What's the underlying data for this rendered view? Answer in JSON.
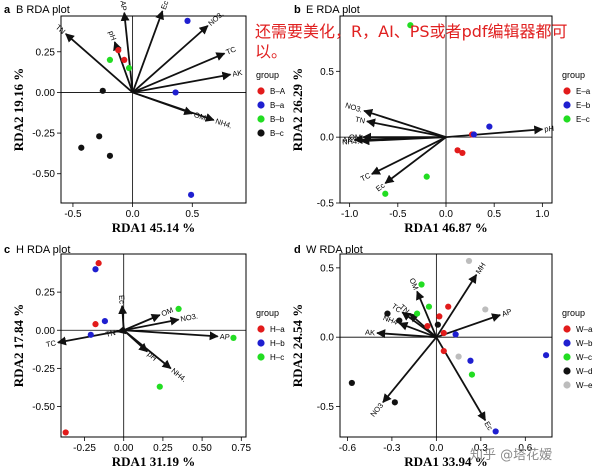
{
  "overlay_note": "还需要美化，R，AI、PS或者pdf编辑器都可以。",
  "watermark": "知乎 @塔花嫒",
  "colors": {
    "arrow": "#111111",
    "a": "#e21b1b",
    "b": "#1f1fd0",
    "c": "#22dd22",
    "d": "#111111",
    "e": "#bdbdbd"
  },
  "chart_data": [
    {
      "type": "scatter",
      "panel_letter": "a",
      "title": "B RDA plot",
      "xlabel": "RDA1 45.14  %",
      "ylabel": "RDA2 19.16  %",
      "xlim": [
        -0.6,
        0.95
      ],
      "ylim": [
        -0.68,
        0.47
      ],
      "xticks": [
        -0.5,
        0,
        0.5
      ],
      "yticks": [
        -0.5,
        -0.25,
        0,
        0.25
      ],
      "tick_labels_x": [
        "-0.5",
        "0.0",
        "0.5"
      ],
      "tick_labels_y": [
        "-0.50",
        "-0.25",
        "0.00",
        "0.25"
      ],
      "legend_title": "group",
      "series": [
        {
          "name": "B–A",
          "color": "#e21b1b",
          "points": [
            [
              -0.12,
              0.26
            ],
            [
              -0.07,
              0.2
            ]
          ]
        },
        {
          "name": "B–a",
          "color": "#1f1fd0",
          "points": [
            [
              0.46,
              0.44
            ],
            [
              0.36,
              0.0
            ],
            [
              0.49,
              -0.63
            ]
          ]
        },
        {
          "name": "B–b",
          "color": "#22dd22",
          "points": [
            [
              -0.19,
              0.2
            ],
            [
              -0.03,
              0.15
            ]
          ]
        },
        {
          "name": "B–c",
          "color": "#111111",
          "points": [
            [
              -0.25,
              0.01
            ],
            [
              -0.28,
              -0.27
            ],
            [
              -0.43,
              -0.34
            ],
            [
              -0.19,
              -0.39
            ]
          ]
        }
      ],
      "arrows": [
        {
          "label": "TN",
          "x": -0.56,
          "y": 0.36
        },
        {
          "label": "pH",
          "x": -0.15,
          "y": 0.31
        },
        {
          "label": "AP",
          "x": -0.07,
          "y": 0.49
        },
        {
          "label": "Ec",
          "x": 0.25,
          "y": 0.5
        },
        {
          "label": "NO3.",
          "x": 0.63,
          "y": 0.41
        },
        {
          "label": "TC",
          "x": 0.77,
          "y": 0.24
        },
        {
          "label": "AK",
          "x": 0.82,
          "y": 0.11
        },
        {
          "label": "OM",
          "x": 0.5,
          "y": -0.13
        },
        {
          "label": "NH4.",
          "x": 0.68,
          "y": -0.17
        }
      ]
    },
    {
      "type": "scatter",
      "panel_letter": "b",
      "title": "E RDA plot",
      "xlabel": "RDA1 46.87  %",
      "ylabel": "RDA2 26.29  %",
      "xlim": [
        -1.1,
        1.1
      ],
      "ylim": [
        -0.5,
        0.92
      ],
      "xticks": [
        -1.0,
        -0.5,
        0,
        0.5,
        1.0
      ],
      "yticks": [
        -0.5,
        0,
        0.5
      ],
      "tick_labels_x": [
        "-1.0",
        "-0.5",
        "0.0",
        "0.5",
        "1.0"
      ],
      "tick_labels_y": [
        "-0.5",
        "0.0",
        "0.5"
      ],
      "legend_title": "group",
      "series": [
        {
          "name": "E–a",
          "color": "#e21b1b",
          "points": [
            [
              0.12,
              -0.1
            ],
            [
              0.17,
              -0.12
            ],
            [
              0.27,
              0.02
            ]
          ]
        },
        {
          "name": "E–b",
          "color": "#1f1fd0",
          "points": [
            [
              0.45,
              0.08
            ],
            [
              0.29,
              0.02
            ]
          ]
        },
        {
          "name": "E–c",
          "color": "#22dd22",
          "points": [
            [
              -0.37,
              0.85
            ],
            [
              -0.2,
              -0.3
            ],
            [
              -0.63,
              -0.43
            ]
          ]
        }
      ],
      "arrows": [
        {
          "label": "pH",
          "x": 1.0,
          "y": 0.06
        },
        {
          "label": "NO3.",
          "x": -0.85,
          "y": 0.2
        },
        {
          "label": "TN",
          "x": -0.82,
          "y": 0.12
        },
        {
          "label": "OM",
          "x": -0.86,
          "y": 0.0
        },
        {
          "label": "AK",
          "x": -0.95,
          "y": -0.02
        },
        {
          "label": "NH4.",
          "x": -0.88,
          "y": -0.03
        },
        {
          "label": "TC",
          "x": -0.77,
          "y": -0.28
        },
        {
          "label": "Ec",
          "x": -0.63,
          "y": -0.35
        }
      ]
    },
    {
      "type": "scatter",
      "panel_letter": "c",
      "title": "H RDA plot",
      "xlabel": "RDA1 31.19  %",
      "ylabel": "RDA2 17.84  %",
      "xlim": [
        -0.4,
        0.78
      ],
      "ylim": [
        -0.7,
        0.5
      ],
      "xticks": [
        -0.25,
        0,
        0.25,
        0.5,
        0.75
      ],
      "yticks": [
        -0.5,
        -0.25,
        0,
        0.25
      ],
      "tick_labels_x": [
        "-0.25",
        "0.00",
        "0.25",
        "0.50",
        "0.75"
      ],
      "tick_labels_y": [
        "-0.50",
        "-0.25",
        "0.00",
        "0.25"
      ],
      "legend_title": "group",
      "series": [
        {
          "name": "H–a",
          "color": "#e21b1b",
          "points": [
            [
              -0.16,
              0.44
            ],
            [
              -0.18,
              0.04
            ],
            [
              -0.37,
              -0.67
            ]
          ]
        },
        {
          "name": "H–b",
          "color": "#1f1fd0",
          "points": [
            [
              -0.18,
              0.4
            ],
            [
              -0.12,
              0.06
            ],
            [
              -0.21,
              -0.03
            ]
          ]
        },
        {
          "name": "H–c",
          "color": "#22dd22",
          "points": [
            [
              0.35,
              0.14
            ],
            [
              0.7,
              -0.05
            ],
            [
              0.23,
              -0.37
            ]
          ]
        }
      ],
      "arrows": [
        {
          "label": "Ec",
          "x": -0.01,
          "y": 0.16
        },
        {
          "label": "OM",
          "x": 0.23,
          "y": 0.1
        },
        {
          "label": "NO3.",
          "x": 0.35,
          "y": 0.07
        },
        {
          "label": "TN",
          "x": -0.04,
          "y": -0.01
        },
        {
          "label": "TC",
          "x": -0.42,
          "y": -0.08
        },
        {
          "label": "pH",
          "x": 0.15,
          "y": -0.14
        },
        {
          "label": "NH4.",
          "x": 0.3,
          "y": -0.25
        },
        {
          "label": "AP",
          "x": 0.6,
          "y": -0.04
        }
      ]
    },
    {
      "type": "scatter",
      "panel_letter": "d",
      "title": "W RDA plot",
      "xlabel": "RDA1 33.94  %",
      "ylabel": "RDA2 24.54  %",
      "xlim": [
        -0.65,
        0.78
      ],
      "ylim": [
        -0.72,
        0.6
      ],
      "xticks": [
        -0.6,
        -0.3,
        0,
        0.3,
        0.6
      ],
      "yticks": [
        -0.5,
        0,
        0.5
      ],
      "tick_labels_x": [
        "-0.6",
        "-0.3",
        "0.0",
        "0.3",
        "0.6"
      ],
      "tick_labels_y": [
        "-0.5",
        "0.0",
        "0.5"
      ],
      "legend_title": "group",
      "series": [
        {
          "name": "W–a",
          "color": "#e21b1b",
          "points": [
            [
              0.08,
              0.22
            ],
            [
              0.02,
              0.15
            ],
            [
              -0.06,
              0.08
            ],
            [
              0.05,
              0.03
            ],
            [
              0.05,
              -0.1
            ]
          ]
        },
        {
          "name": "W–b",
          "color": "#1f1fd0",
          "points": [
            [
              0.74,
              -0.13
            ],
            [
              0.23,
              -0.17
            ],
            [
              0.13,
              0.02
            ],
            [
              0.4,
              -0.68
            ]
          ]
        },
        {
          "name": "W–c",
          "color": "#22dd22",
          "points": [
            [
              -0.1,
              0.38
            ],
            [
              -0.13,
              0.17
            ],
            [
              -0.05,
              0.22
            ],
            [
              0.24,
              -0.27
            ]
          ]
        },
        {
          "name": "W–d",
          "color": "#111111",
          "points": [
            [
              -0.25,
              0.12
            ],
            [
              -0.33,
              0.17
            ],
            [
              -0.57,
              -0.33
            ],
            [
              -0.28,
              -0.47
            ],
            [
              0.01,
              0.09
            ]
          ]
        },
        {
          "name": "W–e",
          "color": "#bdbdbd",
          "points": [
            [
              0.22,
              0.55
            ],
            [
              0.33,
              0.2
            ],
            [
              0.15,
              -0.14
            ]
          ]
        }
      ],
      "arrows": [
        {
          "label": "MH",
          "x": 0.27,
          "y": 0.45
        },
        {
          "label": "OM",
          "x": -0.13,
          "y": 0.33
        },
        {
          "label": "TC",
          "x": -0.23,
          "y": 0.18
        },
        {
          "label": "TN",
          "x": -0.18,
          "y": 0.17
        },
        {
          "label": "NH4",
          "x": -0.25,
          "y": 0.1
        },
        {
          "label": "AK",
          "x": -0.4,
          "y": 0.03
        },
        {
          "label": "AP",
          "x": 0.43,
          "y": 0.16
        },
        {
          "label": "NO3",
          "x": -0.36,
          "y": -0.47
        },
        {
          "label": "Ec",
          "x": 0.33,
          "y": -0.6
        }
      ]
    }
  ]
}
